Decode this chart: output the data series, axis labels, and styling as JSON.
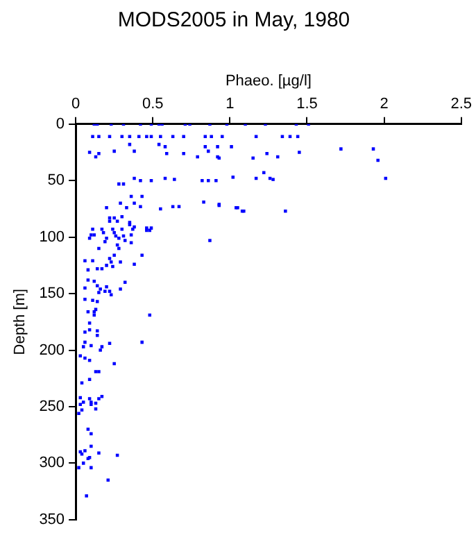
{
  "chart_data": {
    "type": "scatter",
    "title": "MODS2005 in May, 1980",
    "xlabel": "Phaeo. [µg/l]",
    "ylabel": "Depth [m]",
    "xlim": [
      0,
      2.5
    ],
    "xticks": [
      0,
      0.5,
      1,
      1.5,
      2,
      2.5
    ],
    "ylim": [
      350,
      0
    ],
    "yticks": [
      0,
      50,
      100,
      150,
      200,
      250,
      300,
      350
    ],
    "grid": false,
    "legend": false,
    "marker": "square",
    "series": [
      {
        "color": "#0000ff",
        "x": [
          0.12,
          0.14,
          0.23,
          0.31,
          0.42,
          0.49,
          0.54,
          0.56,
          0.71,
          0.74,
          0.87,
          0.98,
          1.1,
          1.23,
          1.43,
          1.51,
          0.11,
          0.15,
          0.22,
          0.3,
          0.35,
          0.41,
          0.46,
          0.49,
          0.55,
          0.63,
          0.7,
          0.84,
          0.88,
          0.95,
          1.17,
          1.34,
          1.39,
          1.44,
          0.35,
          0.54,
          0.58,
          0.84,
          0.92,
          0.09,
          0.15,
          0.25,
          0.38,
          0.59,
          0.7,
          0.79,
          0.86,
          0.92,
          1.15,
          0.13,
          1.01,
          1.72,
          1.93,
          1.24,
          1.45,
          1.31,
          0.93,
          1.96,
          1.22,
          0.38,
          0.42,
          0.49,
          0.58,
          0.64,
          0.82,
          0.86,
          0.91,
          1.02,
          1.17,
          0.28,
          0.31,
          1.26,
          1.28,
          2.01,
          0.43,
          0.36,
          0.29,
          0.38,
          0.33,
          0.42,
          0.2,
          0.55,
          0.63,
          0.67,
          0.83,
          0.93,
          1.05,
          1.09,
          0.22,
          0.25,
          0.3,
          0.35,
          0.38,
          0.46,
          0.49,
          0.11,
          0.17,
          0.24,
          0.3,
          0.93,
          1.04,
          1.08,
          1.36,
          0.22,
          0.27,
          0.35,
          0.37,
          0.48,
          0.46,
          0.87,
          0.1,
          0.18,
          0.25,
          0.26,
          0.31,
          0.36,
          0.12,
          0.09,
          0.2,
          0.28,
          0.32,
          0.36,
          0.19,
          0.27,
          0.28,
          0.15,
          0.25,
          0.43,
          0.22,
          0.23,
          0.29,
          0.06,
          0.11,
          0.2,
          0.24,
          0.38,
          0.08,
          0.14,
          0.17,
          0.08,
          0.12,
          0.2,
          0.32,
          0.14,
          0.16,
          0.15,
          0.19,
          0.22,
          0.23,
          0.29,
          0.06,
          0.06,
          0.11,
          0.14,
          0.08,
          0.12,
          0.13,
          0.12,
          0.48,
          0.09,
          0.06,
          0.09,
          0.14,
          0.14,
          0.06,
          0.22,
          0.43,
          0.1,
          0.17,
          0.05,
          0.16,
          0.03,
          0.06,
          0.09,
          0.25,
          0.13,
          0.15,
          0.04,
          0.09,
          0.03,
          0.09,
          0.17,
          0.15,
          0.05,
          0.1,
          0.13,
          0.1,
          0.03,
          0.13,
          0.04,
          0.02,
          0.08,
          0.1,
          0.1,
          0.03,
          0.06,
          0.04,
          0.09,
          0.08,
          0.15,
          0.27,
          0.05,
          0.02,
          0.1,
          0.21,
          0.07
        ],
        "values": [
          0,
          0,
          0,
          0,
          0,
          0,
          0,
          0,
          0,
          0,
          0,
          0,
          0,
          0,
          0,
          0,
          11,
          11,
          11,
          11,
          11,
          11,
          11,
          11,
          11,
          11,
          11,
          11,
          11,
          11,
          11,
          11,
          11,
          11,
          18,
          18,
          20,
          20,
          20,
          25,
          26,
          24,
          24,
          26,
          26,
          29,
          24,
          29,
          30,
          29,
          20,
          22,
          22,
          26,
          25,
          29,
          30,
          32,
          43,
          48,
          50,
          50,
          48,
          49,
          50,
          50,
          50,
          47,
          48,
          53,
          53,
          48,
          49,
          48,
          64,
          64,
          70,
          70,
          74,
          73,
          74,
          75,
          73,
          73,
          69,
          72,
          74,
          77,
          83,
          83,
          82,
          87,
          91,
          92,
          92,
          93,
          93,
          93,
          93,
          71,
          74,
          77,
          77,
          86,
          86,
          89,
          93,
          94,
          94,
          103,
          98,
          96,
          96,
          99,
          99,
          98,
          98,
          101,
          101,
          101,
          103,
          105,
          104,
          107,
          110,
          110,
          116,
          116,
          119,
          122,
          122,
          121,
          121,
          125,
          126,
          124,
          129,
          128,
          128,
          138,
          139,
          144,
          140,
          143,
          146,
          149,
          148,
          148,
          151,
          146,
          145,
          155,
          156,
          157,
          166,
          166,
          164,
          169,
          169,
          176,
          184,
          182,
          183,
          187,
          193,
          194,
          193,
          196,
          197,
          197,
          200,
          205,
          207,
          209,
          212,
          219,
          219,
          229,
          226,
          242,
          243,
          241,
          243,
          246,
          246,
          247,
          248,
          248,
          252,
          253,
          256,
          270,
          274,
          285,
          290,
          289,
          292,
          295,
          296,
          291,
          293,
          300,
          304,
          304,
          315,
          329
        ]
      }
    ]
  }
}
